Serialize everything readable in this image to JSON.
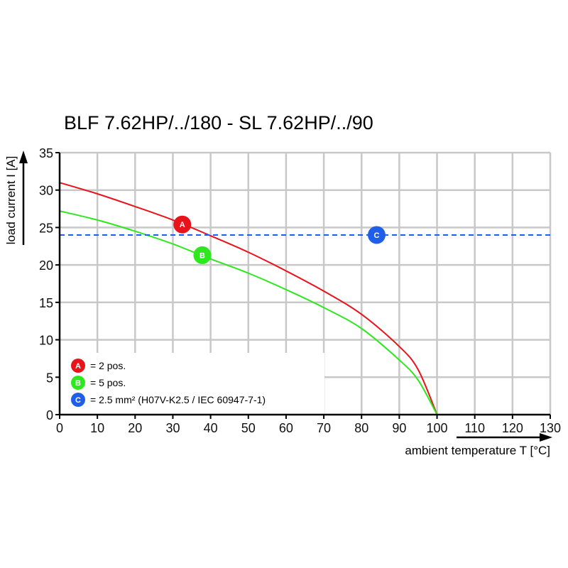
{
  "chart_data": {
    "type": "line",
    "title": "BLF 7.62HP/../180 - SL 7.62HP/../90",
    "xlabel": "ambient temperature T [°C]",
    "ylabel": "load current I [A]",
    "xlim": [
      0,
      130
    ],
    "ylim": [
      0,
      35
    ],
    "xticks": [
      0,
      10,
      20,
      30,
      40,
      50,
      60,
      70,
      80,
      90,
      100,
      110,
      120,
      130
    ],
    "yticks": [
      0,
      5,
      10,
      15,
      20,
      25,
      30,
      35
    ],
    "grid": true,
    "series": [
      {
        "marker": "A",
        "name": "= 2 pos.",
        "color": "#e8131b",
        "style": "solid",
        "x": [
          0,
          10,
          20,
          30,
          40,
          50,
          60,
          70,
          80,
          90,
          95,
          100
        ],
        "y": [
          31.0,
          29.5,
          27.8,
          26.0,
          23.9,
          21.7,
          19.2,
          16.5,
          13.4,
          9.1,
          6.0,
          0
        ],
        "marker_at": [
          32.5,
          25.4
        ]
      },
      {
        "marker": "B",
        "name": "= 5 pos.",
        "color": "#2ee81e",
        "style": "solid",
        "x": [
          0,
          10,
          20,
          30,
          40,
          50,
          60,
          70,
          80,
          90,
          95,
          100
        ],
        "y": [
          27.2,
          26.0,
          24.5,
          22.8,
          20.8,
          18.9,
          16.7,
          14.3,
          11.5,
          7.3,
          4.6,
          0
        ],
        "marker_at": [
          37.8,
          21.3
        ]
      },
      {
        "marker": "C",
        "name": "= 2.5 mm² (H07V-K2.5 / IEC 60947-7-1)",
        "color": "#1f5ee8",
        "style": "dashed",
        "x": [
          0,
          130
        ],
        "y": [
          24,
          24
        ],
        "marker_at": [
          84,
          24
        ]
      }
    ],
    "legend_position": "bottom-left"
  }
}
